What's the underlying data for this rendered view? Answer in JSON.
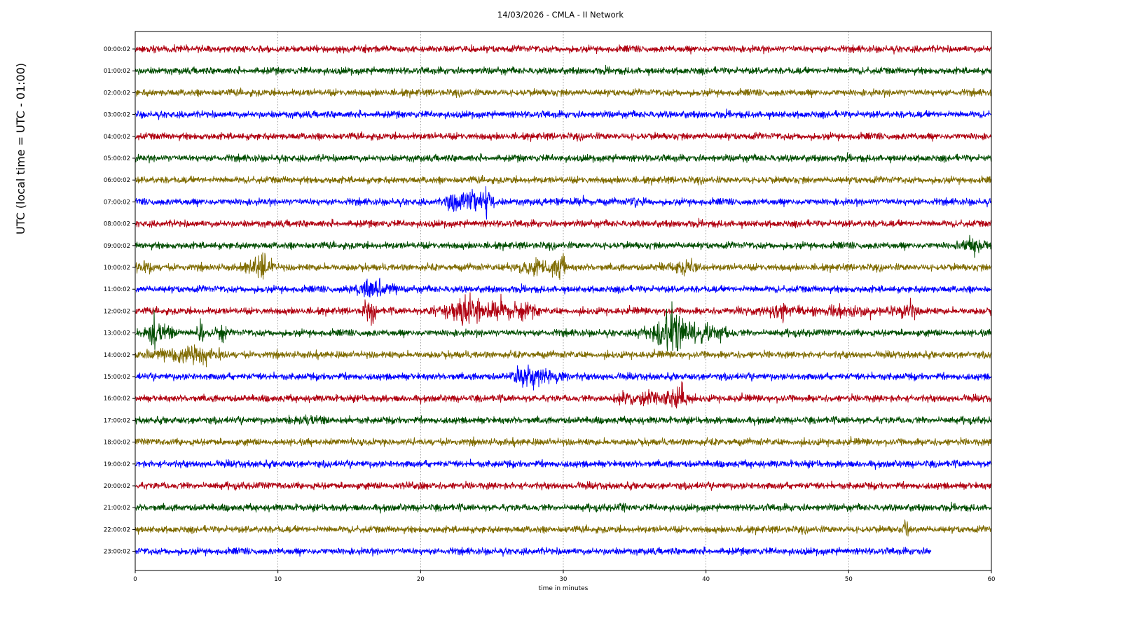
{
  "chart_data": {
    "type": "line",
    "title": "14/03/2026 - CMLA - II Network",
    "xlabel": "time in minutes",
    "ylabel": "UTC (local time = UTC - 01:00)",
    "xlim": [
      0,
      60
    ],
    "x_ticks": [
      "0",
      "10",
      "20",
      "30",
      "40",
      "50",
      "60"
    ],
    "grid": "vertical dotted lines at each x tick",
    "series_colors": [
      "#b00010",
      "#004d00",
      "#7f6b00",
      "#0000ff"
    ],
    "rows": [
      {
        "label": "00:00:02",
        "color": "#b00010",
        "events": [],
        "end": 60
      },
      {
        "label": "01:00:02",
        "color": "#004d00",
        "events": [],
        "end": 60
      },
      {
        "label": "02:00:02",
        "color": "#7f6b00",
        "events": [],
        "end": 60
      },
      {
        "label": "03:00:02",
        "color": "#0000ff",
        "events": [],
        "end": 60
      },
      {
        "label": "04:00:02",
        "color": "#b00010",
        "events": [],
        "end": 60
      },
      {
        "label": "05:00:02",
        "color": "#004d00",
        "events": [],
        "end": 60
      },
      {
        "label": "06:00:02",
        "color": "#7f6b00",
        "events": [],
        "end": 60
      },
      {
        "label": "07:00:02",
        "color": "#0000ff",
        "events": [
          [
            21.5,
            25.5,
            3.2
          ],
          [
            24.3,
            25.0,
            6.0
          ],
          [
            28.5,
            32.5,
            1.4
          ],
          [
            34.5,
            36.0,
            1.8
          ]
        ],
        "end": 60
      },
      {
        "label": "08:00:02",
        "color": "#b00010",
        "events": [],
        "end": 60
      },
      {
        "label": "09:00:02",
        "color": "#004d00",
        "events": [
          [
            57.5,
            60.0,
            2.2
          ]
        ],
        "end": 60
      },
      {
        "label": "10:00:02",
        "color": "#7f6b00",
        "events": [
          [
            0.0,
            1.5,
            2.5
          ],
          [
            7.5,
            10.0,
            3.0
          ],
          [
            8.6,
            9.2,
            5.0
          ],
          [
            26.0,
            30.5,
            2.4
          ],
          [
            29.0,
            30.2,
            4.5
          ],
          [
            36.5,
            40.0,
            2.2
          ]
        ],
        "end": 60
      },
      {
        "label": "11:00:02",
        "color": "#0000ff",
        "events": [
          [
            14.5,
            19.0,
            2.6
          ],
          [
            16.0,
            17.5,
            3.5
          ]
        ],
        "end": 60
      },
      {
        "label": "12:00:02",
        "color": "#b00010",
        "events": [
          [
            15.8,
            17.0,
            3.8
          ],
          [
            20.5,
            28.5,
            3.3
          ],
          [
            22.5,
            24.5,
            5.5
          ],
          [
            41.0,
            55.5,
            1.7
          ],
          [
            44.5,
            46.0,
            3.0
          ],
          [
            53.5,
            54.8,
            3.0
          ]
        ],
        "end": 60
      },
      {
        "label": "13:00:02",
        "color": "#004d00",
        "events": [
          [
            0.5,
            3.0,
            2.8
          ],
          [
            1.0,
            1.5,
            6.5
          ],
          [
            4.3,
            4.9,
            4.5
          ],
          [
            5.5,
            6.5,
            2.5
          ],
          [
            35.0,
            42.0,
            3.3
          ],
          [
            36.5,
            39.0,
            7.0
          ]
        ],
        "end": 60
      },
      {
        "label": "14:00:02",
        "color": "#7f6b00",
        "events": [
          [
            0.0,
            6.5,
            2.6
          ],
          [
            3.0,
            5.5,
            3.2
          ]
        ],
        "end": 60
      },
      {
        "label": "15:00:02",
        "color": "#0000ff",
        "events": [
          [
            26.0,
            30.5,
            2.8
          ],
          [
            27.0,
            28.0,
            4.0
          ]
        ],
        "end": 60
      },
      {
        "label": "16:00:02",
        "color": "#b00010",
        "events": [
          [
            32.5,
            39.0,
            2.0
          ],
          [
            37.0,
            39.0,
            4.0
          ]
        ],
        "end": 60
      },
      {
        "label": "17:00:02",
        "color": "#004d00",
        "events": [
          [
            10.0,
            15.0,
            1.5
          ]
        ],
        "end": 60
      },
      {
        "label": "18:00:02",
        "color": "#7f6b00",
        "events": [],
        "end": 60
      },
      {
        "label": "19:00:02",
        "color": "#0000ff",
        "events": [],
        "end": 60
      },
      {
        "label": "20:00:02",
        "color": "#b00010",
        "events": [
          [
            18.5,
            20.5,
            1.4
          ]
        ],
        "end": 60
      },
      {
        "label": "21:00:02",
        "color": "#004d00",
        "events": [
          [
            33.8,
            34.6,
            1.5
          ]
        ],
        "end": 60
      },
      {
        "label": "22:00:02",
        "color": "#7f6b00",
        "events": [
          [
            53.7,
            54.3,
            3.0
          ]
        ],
        "end": 60
      },
      {
        "label": "23:00:02",
        "color": "#0000ff",
        "events": [],
        "end": 55.8
      }
    ]
  }
}
